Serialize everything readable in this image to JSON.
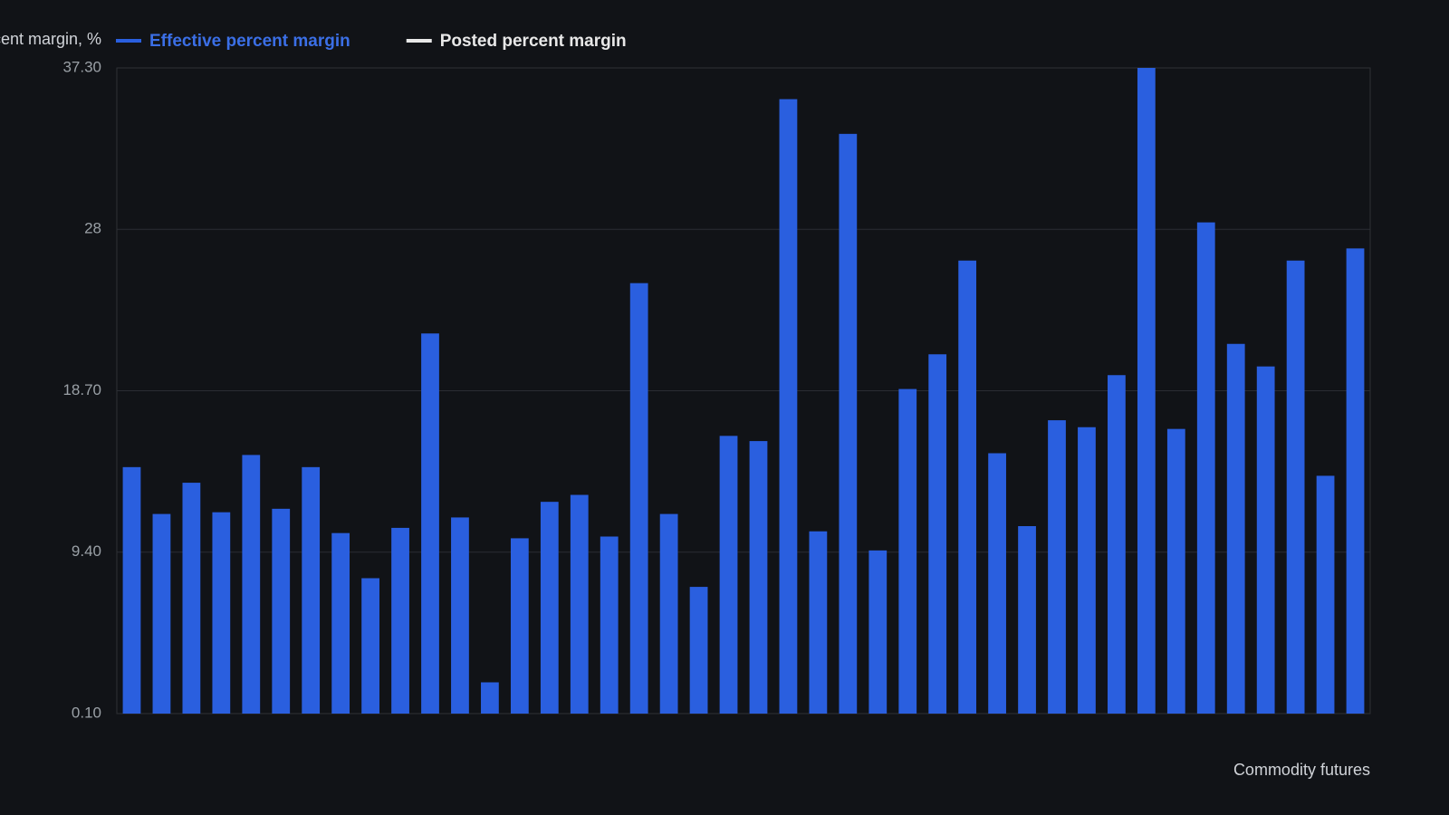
{
  "chart_data": {
    "type": "bar",
    "y_label": "Percent margin, %",
    "x_label": "Commodity futures",
    "categories": [
      null,
      null,
      null,
      null,
      null,
      null,
      null,
      null,
      null,
      null,
      null,
      null,
      null,
      null,
      null,
      null,
      null,
      null,
      null,
      null,
      null,
      null,
      null,
      null,
      null,
      null,
      null,
      null,
      null,
      null,
      null,
      null,
      null,
      null,
      null,
      null,
      null,
      null,
      null,
      null,
      null,
      null
    ],
    "series": [
      {
        "name": "Effective percent margin",
        "color": "#2a5fdf",
        "values": [
          14.3,
          11.6,
          13.4,
          11.7,
          15.0,
          11.9,
          14.3,
          10.5,
          7.9,
          10.8,
          22.0,
          11.4,
          1.9,
          10.2,
          12.3,
          12.7,
          10.3,
          24.9,
          11.6,
          7.4,
          16.1,
          15.8,
          35.5,
          10.6,
          33.5,
          9.5,
          18.8,
          20.8,
          26.2,
          15.1,
          10.9,
          17.0,
          16.6,
          19.6,
          37.3,
          16.5,
          28.4,
          21.4,
          20.1,
          26.2,
          13.8,
          26.9
        ]
      },
      {
        "name": "Posted percent margin",
        "color": "#e8e8e8",
        "values": [
          null,
          null,
          null,
          null,
          null,
          null,
          null,
          null,
          null,
          null,
          null,
          null,
          null,
          null,
          null,
          null,
          null,
          null,
          null,
          null,
          null,
          null,
          null,
          null,
          null,
          null,
          null,
          null,
          null,
          null,
          null,
          null,
          null,
          null,
          null,
          null,
          null,
          null,
          null,
          null,
          null,
          null
        ]
      }
    ],
    "ylim": [
      0.1,
      37.3
    ],
    "yticks": [
      {
        "value": 0.1,
        "label": "0.10"
      },
      {
        "value": 9.4,
        "label": "9.40"
      },
      {
        "value": 18.7,
        "label": "18.70"
      },
      28,
      {
        "value": 37.3,
        "label": "37.30"
      }
    ],
    "grid": true
  }
}
